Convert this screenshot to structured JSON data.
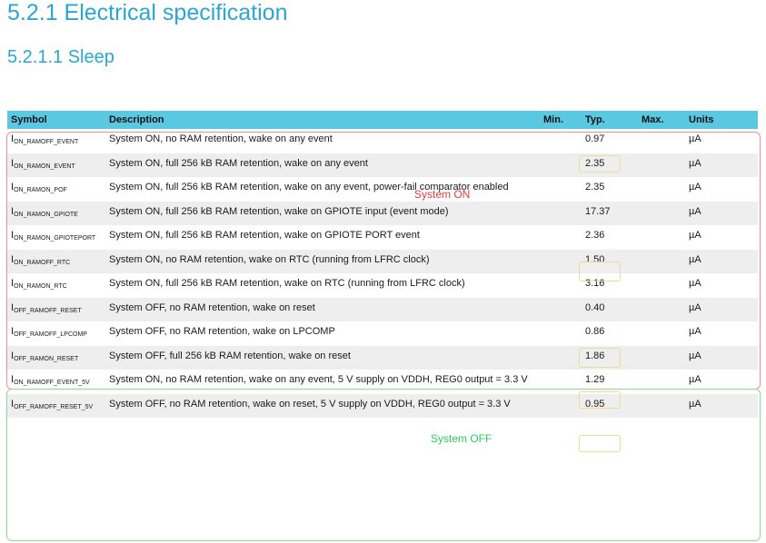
{
  "heading": "5.2.1 Electrical specification",
  "subheading": "5.2.1.1 Sleep",
  "columns": {
    "symbol": "Symbol",
    "description": "Description",
    "min": "Min.",
    "typ": "Typ.",
    "max": "Max.",
    "units": "Units"
  },
  "rows": [
    {
      "sym_base": "I",
      "sym_sub": "ON_RAMOFF_EVENT",
      "desc": "System ON, no RAM retention, wake on any event",
      "min": "",
      "typ": "0.97",
      "max": "",
      "unit": "µA"
    },
    {
      "sym_base": "I",
      "sym_sub": "ON_RAMON_EVENT",
      "desc": "System ON, full 256 kB RAM retention, wake on any event",
      "min": "",
      "typ": "2.35",
      "max": "",
      "unit": "µA"
    },
    {
      "sym_base": "I",
      "sym_sub": "ON_RAMON_POF",
      "desc": "System ON, full 256 kB RAM retention, wake on any event, power-fail comparator enabled",
      "min": "",
      "typ": "2.35",
      "max": "",
      "unit": "µA"
    },
    {
      "sym_base": "I",
      "sym_sub": "ON_RAMON_GPIOTE",
      "desc": "System ON, full 256 kB RAM retention, wake on GPIOTE input (event mode)",
      "min": "",
      "typ": "17.37",
      "max": "",
      "unit": "µA"
    },
    {
      "sym_base": "I",
      "sym_sub": "ON_RAMON_GPIOTEPORT",
      "desc": "System ON, full 256 kB RAM retention, wake on GPIOTE PORT event",
      "min": "",
      "typ": "2.36",
      "max": "",
      "unit": "µA"
    },
    {
      "sym_base": "I",
      "sym_sub": "ON_RAMOFF_RTC",
      "desc": "System ON, no RAM retention, wake on RTC (running from LFRC clock)",
      "min": "",
      "typ": "1.50",
      "max": "",
      "unit": "µA"
    },
    {
      "sym_base": "I",
      "sym_sub": "ON_RAMON_RTC",
      "desc": "System ON, full 256 kB RAM retention, wake on RTC (running from LFRC clock)",
      "min": "",
      "typ": "3.16",
      "max": "",
      "unit": "µA"
    },
    {
      "sym_base": "I",
      "sym_sub": "OFF_RAMOFF_RESET",
      "desc": "System OFF, no RAM retention, wake on reset",
      "min": "",
      "typ": "0.40",
      "max": "",
      "unit": "µA"
    },
    {
      "sym_base": "I",
      "sym_sub": "OFF_RAMOFF_LPCOMP",
      "desc": "System OFF, no RAM retention, wake on LPCOMP",
      "min": "",
      "typ": "0.86",
      "max": "",
      "unit": "µA"
    },
    {
      "sym_base": "I",
      "sym_sub": "OFF_RAMON_RESET",
      "desc": "System OFF, full 256 kB RAM retention, wake on reset",
      "min": "",
      "typ": "1.86",
      "max": "",
      "unit": "µA"
    },
    {
      "sym_base": "I",
      "sym_sub": "ON_RAMOFF_EVENT_5V",
      "desc": "System ON, no RAM retention, wake on any event, 5 V supply on VDDH, REG0 output = 3.3 V",
      "min": "",
      "typ": "1.29",
      "max": "",
      "unit": "µA"
    },
    {
      "sym_base": "I",
      "sym_sub": "OFF_RAMOFF_RESET_5V",
      "desc": "System OFF, no RAM retention, wake on reset, 5 V supply on VDDH, REG0 output = 3.3 V",
      "min": "",
      "typ": "0.95",
      "max": "",
      "unit": "µA"
    }
  ],
  "annotations": {
    "system_on": "System ON",
    "system_off": "System OFF"
  },
  "colors": {
    "heading": "#2aa7d1",
    "header_bg": "#5bc8e2",
    "on_group": "#ef8f93",
    "off_group": "#8fd992",
    "typ_highlight": "#e8dc9a"
  }
}
